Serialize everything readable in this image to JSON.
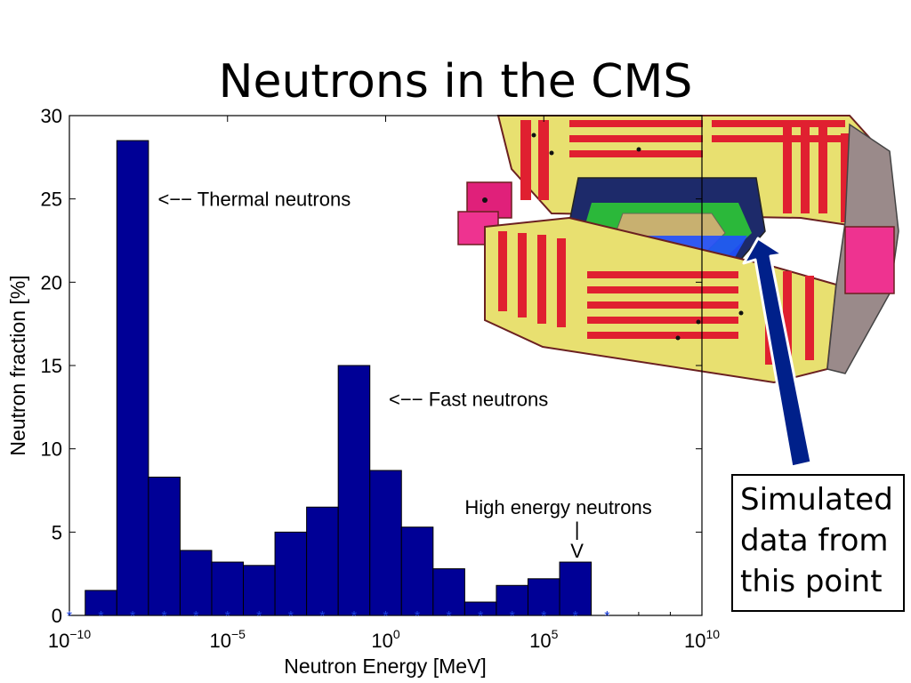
{
  "slide": {
    "title": "Neutrons in the CMS"
  },
  "note": {
    "lines": [
      "Simulated",
      "data from",
      "this point"
    ]
  },
  "colors": {
    "bar": "#000096",
    "marker": "#1a3fe0",
    "arrow": "#00208a"
  },
  "image": {
    "name": "cms-detector-illustration"
  },
  "chart_data": {
    "type": "bar",
    "xlabel": "Neutron Energy [MeV]",
    "ylabel": "Neutron fraction [%]",
    "xscale": "log",
    "xlim_exponent": [
      -10,
      10
    ],
    "ylim": [
      0,
      30
    ],
    "xticks": [
      {
        "base": "10",
        "exp": "−10",
        "value": -10
      },
      {
        "base": "10",
        "exp": "−5",
        "value": -5
      },
      {
        "base": "10",
        "exp": "0",
        "value": 0
      },
      {
        "base": "10",
        "exp": "5",
        "value": 5
      },
      {
        "base": "10",
        "exp": "10",
        "value": 10
      }
    ],
    "yticks": [
      0,
      5,
      10,
      15,
      20,
      25,
      30
    ],
    "bin_edges_exponent": [
      -9.5,
      -8.5,
      -7.5,
      -6.5,
      -5.5,
      -4.5,
      -3.5,
      -2.5,
      -1.5,
      -0.5,
      0.5,
      1.5,
      2.5,
      3.5,
      4.5,
      5.5,
      6.5,
      7.5
    ],
    "values": [
      1.5,
      28.5,
      8.3,
      3.9,
      3.2,
      3.0,
      5.0,
      6.5,
      15.0,
      8.7,
      5.3,
      2.8,
      0.8,
      1.8,
      2.2,
      3.2,
      0
    ],
    "markers_exponent": [
      -10,
      -9,
      -8,
      -7,
      -6,
      -5,
      -4,
      -3,
      -2,
      -1,
      0,
      1,
      2,
      3,
      4,
      5,
      6,
      7
    ],
    "annotations": [
      {
        "text": "<−− Thermal neutrons",
        "x_exponent": -7.2,
        "y": 25
      },
      {
        "text": "<−− Fast neutrons",
        "x_exponent": 0.1,
        "y": 13
      },
      {
        "text": "High energy neutrons",
        "x_exponent": 2.5,
        "y": 6.5
      },
      {
        "text": "|",
        "x_exponent": 6.05,
        "y": 5.2
      },
      {
        "text": "V",
        "x_exponent": 6.05,
        "y": 3.9
      }
    ]
  }
}
